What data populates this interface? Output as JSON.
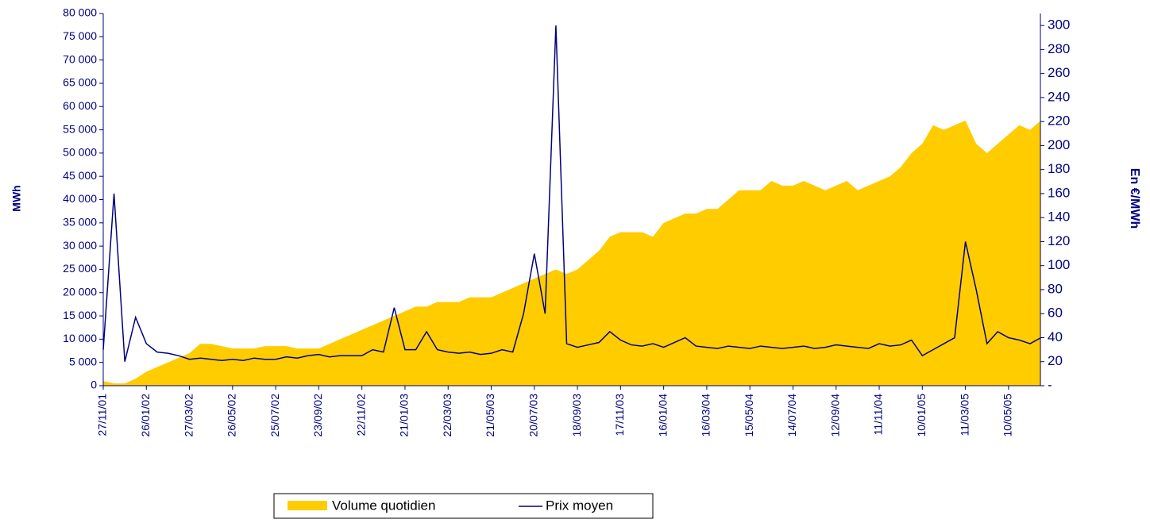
{
  "chart_data": {
    "type": "line",
    "y_axis_label": "MWh",
    "y2_axis_label": "En €/MWh",
    "categories": [
      "27/11/01",
      null,
      null,
      null,
      "26/01/02",
      null,
      null,
      null,
      "27/03/02",
      null,
      null,
      null,
      "26/05/02",
      null,
      null,
      null,
      "25/07/02",
      null,
      null,
      null,
      "23/09/02",
      null,
      null,
      null,
      "22/11/02",
      null,
      null,
      null,
      "21/01/03",
      null,
      null,
      null,
      "22/03/03",
      null,
      null,
      null,
      "21/05/03",
      null,
      null,
      null,
      "20/07/03",
      null,
      null,
      null,
      "18/09/03",
      null,
      null,
      null,
      "17/11/03",
      null,
      null,
      null,
      "16/01/04",
      null,
      null,
      null,
      "16/03/04",
      null,
      null,
      null,
      "15/05/04",
      null,
      null,
      null,
      "14/07/04",
      null,
      null,
      null,
      "12/09/04",
      null,
      null,
      null,
      "11/11/04",
      null,
      null,
      null,
      "10/01/05",
      null,
      null,
      null,
      "11/03/05",
      null,
      null,
      null,
      "10/05/05",
      null,
      null,
      null
    ],
    "series": [
      {
        "name": "Volume quotidien",
        "kind": "area",
        "color": "#ffcc00",
        "values": [
          1000,
          500,
          500,
          1500,
          3000,
          4000,
          5000,
          6000,
          7000,
          9000,
          9000,
          8500,
          8000,
          8000,
          8000,
          8500,
          8500,
          8500,
          8000,
          8000,
          8000,
          9000,
          10000,
          11000,
          12000,
          13000,
          14000,
          15000,
          16000,
          17000,
          17000,
          18000,
          18000,
          18000,
          19000,
          19000,
          19000,
          20000,
          21000,
          22000,
          23000,
          24000,
          25000,
          24000,
          25000,
          27000,
          29000,
          32000,
          33000,
          33000,
          33000,
          32000,
          35000,
          36000,
          37000,
          37000,
          38000,
          38000,
          40000,
          42000,
          42000,
          42000,
          44000,
          43000,
          43000,
          44000,
          43000,
          42000,
          43000,
          44000,
          42000,
          43000,
          44000,
          45000,
          47000,
          50000,
          52000,
          56000,
          55000,
          56000,
          57000,
          52000,
          50000,
          52000,
          54000,
          56000,
          55000,
          57000
        ]
      },
      {
        "name": "Prix moyen",
        "kind": "line",
        "axis": "y2",
        "color": "#000080",
        "values": [
          30,
          160,
          20,
          57,
          35,
          28,
          27,
          25,
          22,
          23,
          22,
          21,
          22,
          21,
          23,
          22,
          22,
          24,
          23,
          25,
          26,
          24,
          25,
          25,
          25,
          30,
          28,
          65,
          30,
          30,
          45,
          30,
          28,
          27,
          28,
          26,
          27,
          30,
          28,
          60,
          110,
          60,
          300,
          35,
          32,
          34,
          36,
          45,
          38,
          34,
          33,
          35,
          32,
          36,
          40,
          33,
          32,
          31,
          33,
          32,
          31,
          33,
          32,
          31,
          32,
          33,
          31,
          32,
          34,
          33,
          32,
          31,
          35,
          33,
          34,
          38,
          25,
          30,
          35,
          40,
          120,
          80,
          35,
          45,
          40,
          38,
          35,
          40
        ]
      }
    ],
    "ylim": [
      0,
      80000
    ],
    "yticks": [
      0,
      {
        "value": 5000,
        "label": "5 000"
      },
      {
        "value": 10000,
        "label": "10 000"
      },
      {
        "value": 15000,
        "label": "15 000"
      },
      {
        "value": 20000,
        "label": "20 000"
      },
      {
        "value": 25000,
        "label": "25 000"
      },
      {
        "value": 30000,
        "label": "30 000"
      },
      {
        "value": 35000,
        "label": "35 000"
      },
      {
        "value": 40000,
        "label": "40 000"
      },
      {
        "value": 45000,
        "label": "45 000"
      },
      {
        "value": 50000,
        "label": "50 000"
      },
      {
        "value": 55000,
        "label": "55 000"
      },
      {
        "value": 60000,
        "label": "60 000"
      },
      {
        "value": 65000,
        "label": "65 000"
      },
      {
        "value": 70000,
        "label": "70 000"
      },
      {
        "value": 75000,
        "label": "75 000"
      },
      {
        "value": 80000,
        "label": "80 000"
      }
    ],
    "y2lim": [
      0,
      310
    ],
    "y2ticks": [
      {
        "value": 0,
        "label": "-"
      },
      20,
      40,
      60,
      80,
      100,
      120,
      140,
      160,
      180,
      200,
      220,
      240,
      260,
      280,
      300
    ],
    "axis_color": "#000080"
  }
}
